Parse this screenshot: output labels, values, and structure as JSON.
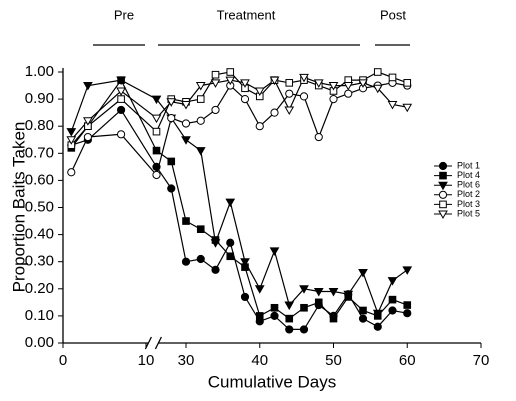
{
  "chart_data": {
    "type": "line",
    "xlabel": "Cumulative Days",
    "ylabel": "Proportion Baits Taken",
    "phases": [
      "Pre",
      "Treatment",
      "Post"
    ],
    "x": [
      1,
      3,
      7,
      26,
      28,
      30,
      32,
      34,
      36,
      38,
      40,
      42,
      44,
      46,
      48,
      50,
      52,
      54,
      56,
      58,
      60
    ],
    "xlim": [
      0,
      70
    ],
    "xbreak": [
      11,
      26
    ],
    "xticks": [
      0,
      10,
      30,
      40,
      50,
      60,
      70
    ],
    "ylim": [
      0,
      1
    ],
    "yticks": [
      {
        "value": 0,
        "label": "0.00"
      },
      {
        "value": 0.1,
        "label": "0.10"
      },
      {
        "value": 0.2,
        "label": "0.20"
      },
      {
        "value": 0.3,
        "label": "0.30"
      },
      {
        "value": 0.4,
        "label": "0.40"
      },
      {
        "value": 0.5,
        "label": "0.50"
      },
      {
        "value": 0.6,
        "label": "0.60"
      },
      {
        "value": 0.7,
        "label": "0.70"
      },
      {
        "value": 0.8,
        "label": "0.80"
      },
      {
        "value": 0.9,
        "label": "0.90"
      },
      {
        "value": 1,
        "label": "1.00"
      }
    ],
    "legend": "right",
    "series": [
      {
        "name": "Plot 1",
        "color": "#000000",
        "marker": "circle",
        "fill": "#000000",
        "values": [
          0.73,
          0.75,
          0.86,
          0.65,
          0.57,
          0.3,
          0.31,
          0.27,
          0.37,
          0.17,
          0.08,
          0.1,
          0.05,
          0.05,
          0.14,
          0.1,
          0.18,
          0.09,
          0.06,
          0.12,
          0.11
        ]
      },
      {
        "name": "Plot 4",
        "color": "#000000",
        "marker": "square",
        "fill": "#000000",
        "values": [
          0.72,
          0.8,
          0.97,
          0.71,
          0.67,
          0.45,
          0.42,
          0.38,
          0.32,
          0.28,
          0.1,
          0.13,
          0.09,
          0.13,
          0.15,
          0.09,
          0.17,
          0.12,
          0.1,
          0.16,
          0.14
        ]
      },
      {
        "name": "Plot 6",
        "color": "#000000",
        "marker": "triangle-down",
        "fill": "#000000",
        "values": [
          0.78,
          0.95,
          0.97,
          0.9,
          0.83,
          0.75,
          0.71,
          0.37,
          0.52,
          0.3,
          0.2,
          0.34,
          0.14,
          0.2,
          0.19,
          0.19,
          0.18,
          0.26,
          0.11,
          0.23,
          0.27
        ]
      },
      {
        "name": "Plot 2",
        "color": "#000000",
        "marker": "circle",
        "fill": "#ffffff",
        "values": [
          0.63,
          0.76,
          0.77,
          0.62,
          0.83,
          0.81,
          0.82,
          0.86,
          0.95,
          0.9,
          0.8,
          0.85,
          0.92,
          0.91,
          0.76,
          0.9,
          0.92,
          0.94,
          0.95,
          0.96,
          0.95
        ]
      },
      {
        "name": "Plot 3",
        "color": "#000000",
        "marker": "square",
        "fill": "#ffffff",
        "values": [
          0.73,
          0.8,
          0.9,
          0.78,
          0.9,
          0.89,
          0.9,
          0.99,
          1.0,
          0.94,
          0.91,
          0.97,
          0.96,
          0.97,
          0.95,
          0.93,
          0.97,
          0.97,
          1.0,
          0.98,
          0.96
        ]
      },
      {
        "name": "Plot 5",
        "color": "#000000",
        "marker": "triangle-down",
        "fill": "#ffffff",
        "values": [
          0.75,
          0.82,
          0.93,
          0.83,
          0.89,
          0.88,
          0.95,
          0.96,
          0.97,
          0.96,
          0.93,
          0.97,
          0.86,
          0.98,
          0.96,
          0.95,
          0.95,
          0.96,
          0.94,
          0.88,
          0.87
        ]
      }
    ]
  }
}
